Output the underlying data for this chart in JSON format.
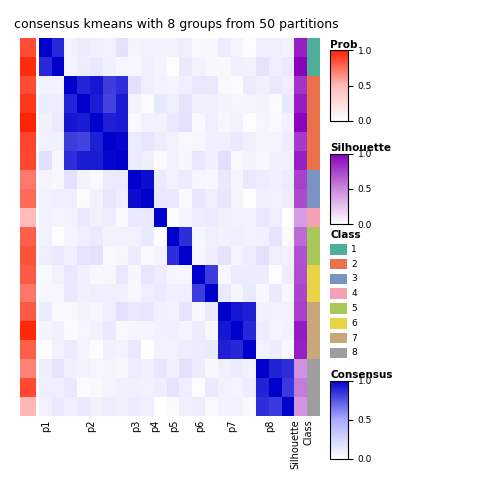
{
  "title": "consensus kmeans with 8 groups from 50 partitions",
  "group_sizes": [
    2,
    5,
    2,
    1,
    2,
    2,
    3,
    3
  ],
  "group_labels": [
    "p1",
    "p2",
    "p3",
    "p4",
    "p5",
    "p6",
    "p7",
    "p8",
    "Silhouette",
    "Class"
  ],
  "class_colors": {
    "1": "#4DAF9A",
    "2": "#E8714A",
    "3": "#7B93C0",
    "4": "#F4A0B5",
    "5": "#A8C858",
    "6": "#E8D444",
    "7": "#C8A878",
    "8": "#9E9E9E"
  },
  "prob_cmap_colors": [
    "white",
    "#FFBBBB",
    "#FF2200"
  ],
  "sil_cmap_colors": [
    "white",
    "#CC88DD",
    "#8800BB"
  ],
  "cons_cmap_colors": [
    "white",
    "#AAAAFF",
    "#0000CC"
  ],
  "legend_fontsize": 7,
  "title_fontsize": 9
}
